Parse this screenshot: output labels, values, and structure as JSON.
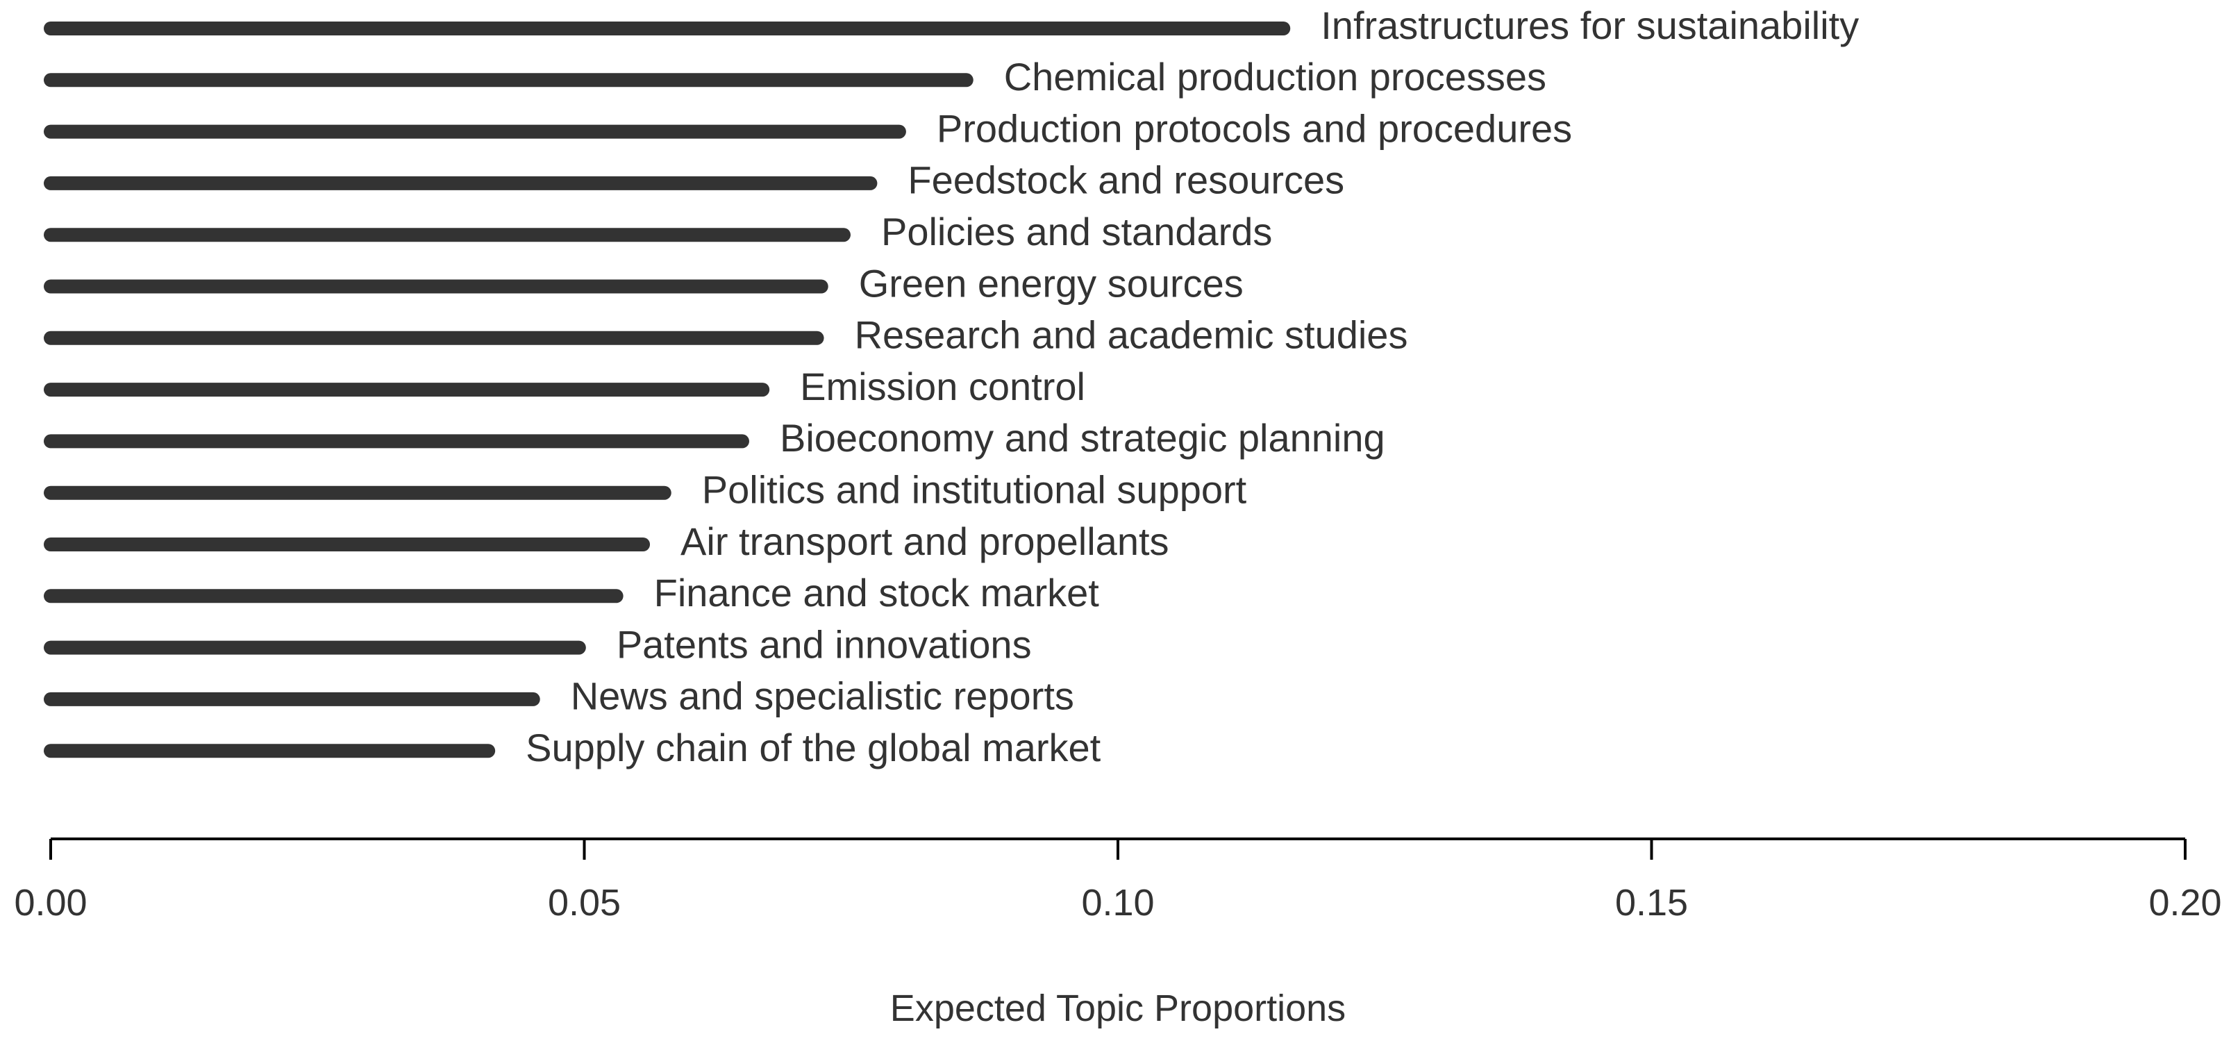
{
  "chart_data": {
    "type": "bar",
    "orientation": "horizontal",
    "title": "",
    "xlabel": "Expected Topic Proportions",
    "ylabel": "",
    "xlim": [
      0,
      0.2
    ],
    "xticks": [
      0,
      0.05,
      0.1,
      0.15,
      0.2
    ],
    "xtick_labels": [
      "0.00",
      "0.05",
      "0.10",
      "0.15",
      "0.20"
    ],
    "grid": false,
    "colors": {
      "bar": "#333333",
      "text": "#333333",
      "axis": "#000000"
    },
    "categories": [
      "Infrastructures for sustainability",
      "Chemical production processes",
      "Production protocols and procedures",
      "Feedstock and resources",
      "Policies and standards",
      "Green energy sources",
      "Research and academic studies",
      "Emission control",
      "Bioeconomy and strategic planning",
      "Politics and institutional support",
      "Air transport and propellants",
      "Finance and stock market",
      "Patents and innovations",
      "News and specialistic reports",
      "Supply chain of the global market"
    ],
    "values": [
      0.1155,
      0.0858,
      0.0795,
      0.0768,
      0.0743,
      0.0722,
      0.0718,
      0.0667,
      0.0648,
      0.0575,
      0.0555,
      0.053,
      0.0495,
      0.0452,
      0.041
    ]
  }
}
